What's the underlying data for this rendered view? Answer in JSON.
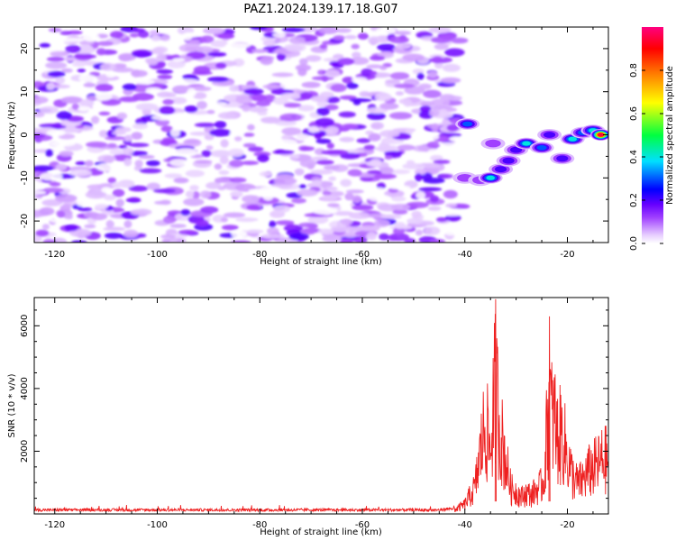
{
  "figure": {
    "title": "PAZ1.2024.139.17.18.G07"
  },
  "chart_data": [
    {
      "type": "heatmap",
      "xlabel": "Height of straight line (km)",
      "ylabel": "Frequency (Hz)",
      "xlim": [
        -124,
        -12
      ],
      "ylim": [
        -25,
        25
      ],
      "xticks": [
        -120,
        -100,
        -80,
        -60,
        -40,
        -20
      ],
      "yticks": [
        -20,
        -10,
        0,
        10,
        20
      ],
      "colorbar": {
        "label": "Normalized spectral amplitude",
        "range": [
          0,
          1
        ],
        "ticks": [
          "0.0",
          "0.2",
          "0.4",
          "0.6",
          "0.8"
        ],
        "tick_values": [
          0.0,
          0.2,
          0.4,
          0.6,
          0.8
        ],
        "colormap": [
          "#ffffff",
          "#e6ccff",
          "#a040ff",
          "#6600ff",
          "#0000ff",
          "#00e0ff",
          "#00ff40",
          "#ffff00",
          "#ff8000",
          "#ff0000",
          "#ff0080"
        ]
      },
      "noise_region": {
        "x_range": [
          -124,
          -41
        ],
        "y_range": [
          -25,
          25
        ],
        "typical_amplitude": [
          0.02,
          0.12
        ]
      },
      "signal_track": [
        {
          "x": -39.5,
          "y": 2.5,
          "amplitude": 0.35
        },
        {
          "x": -40.0,
          "y": -10.0,
          "amplitude": 0.15
        },
        {
          "x": -37.0,
          "y": -10.5,
          "amplitude": 0.18
        },
        {
          "x": -35.0,
          "y": -10.0,
          "amplitude": 0.4
        },
        {
          "x": -33.0,
          "y": -8.0,
          "amplitude": 0.22
        },
        {
          "x": -31.5,
          "y": -6.0,
          "amplitude": 0.25
        },
        {
          "x": -30.0,
          "y": -3.5,
          "amplitude": 0.2
        },
        {
          "x": -34.5,
          "y": -2.0,
          "amplitude": 0.15
        },
        {
          "x": -28.0,
          "y": -2.0,
          "amplitude": 0.45
        },
        {
          "x": -25.0,
          "y": -3.0,
          "amplitude": 0.3
        },
        {
          "x": -21.0,
          "y": -5.5,
          "amplitude": 0.2
        },
        {
          "x": -23.5,
          "y": 0.0,
          "amplitude": 0.2
        },
        {
          "x": -19.0,
          "y": -1.0,
          "amplitude": 0.4
        },
        {
          "x": -17.0,
          "y": 0.5,
          "amplitude": 0.35
        },
        {
          "x": -15.0,
          "y": 1.0,
          "amplitude": 0.5
        },
        {
          "x": -13.5,
          "y": 0.0,
          "amplitude": 0.95
        }
      ]
    },
    {
      "type": "line",
      "xlabel": "Height of straight line (km)",
      "ylabel": "SNR (10 * v/v)",
      "xlim": [
        -124,
        -12
      ],
      "ylim": [
        0,
        6900
      ],
      "xticks": [
        -120,
        -100,
        -80,
        -60,
        -40,
        -20
      ],
      "yticks": [
        2000,
        4000,
        6000
      ],
      "color": "#ee2020",
      "envelope": {
        "x": [
          -124,
          -45,
          -42,
          -40,
          -38,
          -37,
          -36,
          -35,
          -34.5,
          -34,
          -33.5,
          -33,
          -32,
          -31,
          -30,
          -29,
          -28,
          -27,
          -26,
          -25,
          -24.5,
          -24,
          -23.5,
          -23,
          -22.5,
          -22,
          -21,
          -20,
          -19,
          -18,
          -17,
          -16,
          -15,
          -14,
          -13,
          -12
        ],
        "y": [
          150,
          150,
          220,
          500,
          1400,
          3200,
          4800,
          3200,
          5500,
          6850,
          5500,
          4200,
          2800,
          1300,
          1200,
          900,
          1100,
          1000,
          1300,
          1500,
          2000,
          4400,
          6300,
          5000,
          5100,
          4000,
          4200,
          3000,
          2000,
          1600,
          1800,
          2200,
          2400,
          2600,
          2900,
          2800
        ]
      },
      "peaks": [
        {
          "x": -34,
          "y": 6850
        },
        {
          "x": -23.5,
          "y": 6300
        }
      ]
    }
  ]
}
